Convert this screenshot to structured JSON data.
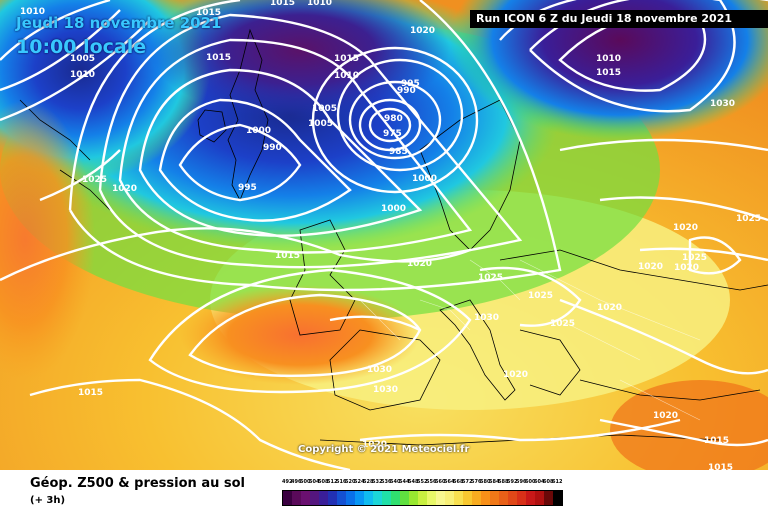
{
  "header": {
    "date": "Jeudi 18 novembre 2021",
    "time": "10:00 locale",
    "run": "Run ICON 6 Z du Jeudi 18 novembre 2021"
  },
  "copyright": "Copyright © 2021 Meteociel.fr",
  "footer": {
    "product": "Géop. Z500 & pression au sol",
    "timestep": "(+ 3h)"
  },
  "legend": {
    "values": [
      "492",
      "496",
      "500",
      "504",
      "508",
      "512",
      "516",
      "520",
      "524",
      "528",
      "532",
      "536",
      "540",
      "544",
      "548",
      "552",
      "556",
      "560",
      "564",
      "568",
      "572",
      "576",
      "580",
      "584",
      "588",
      "592",
      "596",
      "600",
      "604",
      "608",
      "612"
    ],
    "colors": [
      "#3a0040",
      "#5a0a5a",
      "#6a1070",
      "#54167e",
      "#3a1e98",
      "#2230b4",
      "#1450d2",
      "#0a70e8",
      "#0896f4",
      "#10bcf0",
      "#1cd6d8",
      "#20e0a8",
      "#30e070",
      "#60e040",
      "#98e830",
      "#c8f040",
      "#e8f868",
      "#f8f890",
      "#f8f078",
      "#f8e050",
      "#f8c830",
      "#f8ac20",
      "#f89018",
      "#f07818",
      "#e86018",
      "#e04818",
      "#d83018",
      "#c81818",
      "#b01010",
      "#6a0808",
      "#000000"
    ]
  },
  "isobars": [
    {
      "label": "1015",
      "name": "label-1015-a"
    },
    {
      "label": "1010",
      "name": "label-1010-a"
    },
    {
      "label": "1005",
      "name": "label-1005-a"
    },
    {
      "label": "1010",
      "name": "label-1010-b"
    },
    {
      "label": "1025",
      "name": "label-1025-a"
    },
    {
      "label": "1020",
      "name": "label-1020-a"
    },
    {
      "label": "1015",
      "name": "label-1015-b"
    },
    {
      "label": "1020",
      "name": "label-1020-b"
    },
    {
      "label": "1015",
      "name": "label-1015-c"
    },
    {
      "label": "1010",
      "name": "label-1010-c"
    },
    {
      "label": "1005",
      "name": "label-1005-b"
    },
    {
      "label": "1005",
      "name": "label-1005-c"
    },
    {
      "label": "1000",
      "name": "label-1000-a"
    },
    {
      "label": "990",
      "name": "label-990-a"
    },
    {
      "label": "995",
      "name": "label-995-a"
    },
    {
      "label": "995",
      "name": "label-995-b"
    },
    {
      "label": "990",
      "name": "label-990-b"
    },
    {
      "label": "980",
      "name": "label-980"
    },
    {
      "label": "975",
      "name": "label-975"
    },
    {
      "label": "985",
      "name": "label-985"
    },
    {
      "label": "1000",
      "name": "label-1000-b"
    },
    {
      "label": "1000",
      "name": "label-1000-c"
    },
    {
      "label": "1015",
      "name": "label-1015-d"
    },
    {
      "label": "1020",
      "name": "label-1020-c"
    },
    {
      "label": "1025",
      "name": "label-1025-b"
    },
    {
      "label": "1025",
      "name": "label-1025-c"
    },
    {
      "label": "1030",
      "name": "label-1030-a"
    },
    {
      "label": "1025",
      "name": "label-1025-d"
    },
    {
      "label": "1020",
      "name": "label-1020-d"
    },
    {
      "label": "1030",
      "name": "label-1030-b"
    },
    {
      "label": "1030",
      "name": "label-1030-c"
    },
    {
      "label": "1020",
      "name": "label-1020-e"
    },
    {
      "label": "1015",
      "name": "label-1015-e"
    },
    {
      "label": "1020",
      "name": "label-1020-f"
    },
    {
      "label": "1010",
      "name": "label-1010-d"
    },
    {
      "label": "1015",
      "name": "label-1015-f"
    },
    {
      "label": "1030",
      "name": "label-1030-d"
    },
    {
      "label": "1025",
      "name": "label-1025-e"
    },
    {
      "label": "1020",
      "name": "label-1020-g"
    },
    {
      "label": "1025",
      "name": "label-1025-f"
    },
    {
      "label": "1020",
      "name": "label-1020-h"
    },
    {
      "label": "1020",
      "name": "label-1020-i"
    },
    {
      "label": "1020",
      "name": "label-1020-j"
    },
    {
      "label": "1015",
      "name": "label-1015-g"
    },
    {
      "label": "1015",
      "name": "label-1015-h"
    },
    {
      "label": "1015",
      "name": "label-1015-i"
    },
    {
      "label": "1020",
      "name": "label-1020-k"
    },
    {
      "label": "1010",
      "name": "label-1010-e"
    }
  ]
}
